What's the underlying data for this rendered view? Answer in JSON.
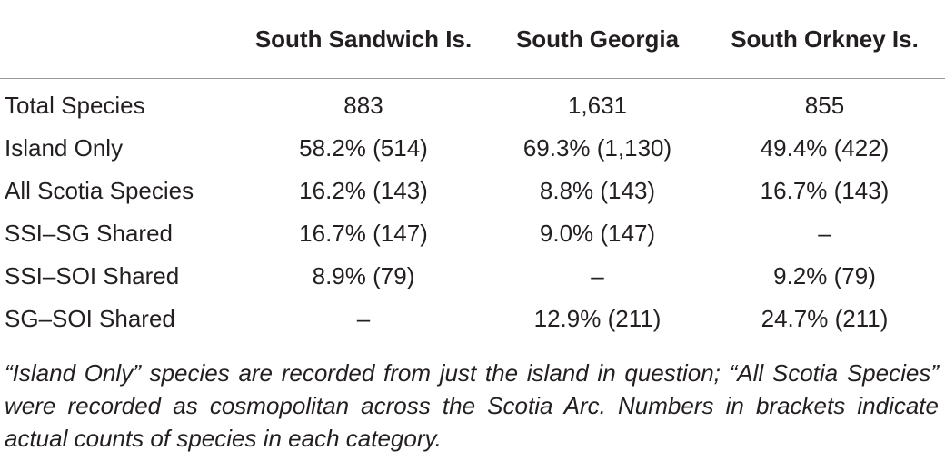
{
  "table": {
    "headers": [
      "",
      "South Sandwich Is.",
      "South Georgia",
      "South Orkney Is."
    ],
    "rows": [
      {
        "label": "Total Species",
        "values": [
          "883",
          "1,631",
          "855"
        ]
      },
      {
        "label": "Island Only",
        "values": [
          "58.2% (514)",
          "69.3% (1,130)",
          "49.4% (422)"
        ]
      },
      {
        "label": "All Scotia Species",
        "values": [
          "16.2% (143)",
          "8.8% (143)",
          "16.7% (143)"
        ]
      },
      {
        "label": "SSI–SG Shared",
        "values": [
          "16.7% (147)",
          "9.0% (147)",
          "–"
        ]
      },
      {
        "label": "SSI–SOI Shared",
        "values": [
          "8.9% (79)",
          "–",
          "9.2% (79)"
        ]
      },
      {
        "label": "SG–SOI Shared",
        "values": [
          "–",
          "12.9% (211)",
          "24.7% (211)"
        ]
      }
    ]
  },
  "footnote": "“Island Only” species are recorded from just the island in question; “All Scotia Species” were recorded as cosmopolitan across the Scotia Arc. Numbers in brackets indicate actual counts of species in each category."
}
